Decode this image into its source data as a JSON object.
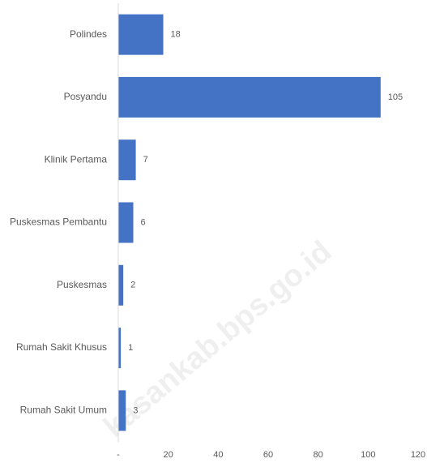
{
  "chart_data": {
    "type": "bar",
    "orientation": "horizontal",
    "categories": [
      "Polindes",
      "Posyandu",
      "Klinik Pertama",
      "Puskesmas Pembantu",
      "Puskesmas",
      "Rumah Sakit Khusus",
      "Rumah Sakit Umum"
    ],
    "values": [
      18,
      105,
      7,
      6,
      2,
      1,
      3
    ],
    "color": "#4472c4",
    "xlim": [
      0,
      120
    ],
    "xticks": [
      {
        "value": 0,
        "label": "-"
      },
      20,
      40,
      60,
      80,
      100,
      120
    ],
    "watermark": "kasankab.bps.go.id"
  }
}
